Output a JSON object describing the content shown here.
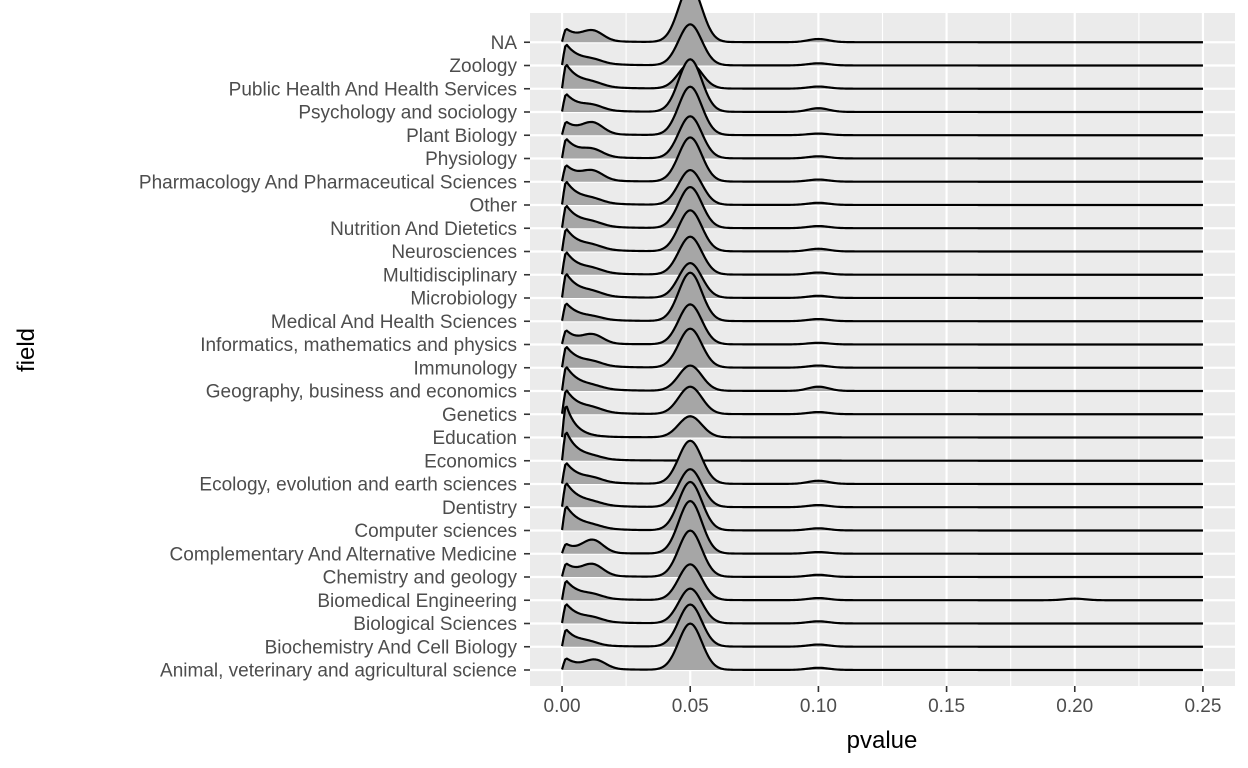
{
  "chart_data": {
    "type": "ridgeline",
    "xlabel": "pvalue",
    "ylabel": "field",
    "xlim": [
      -0.0125,
      0.2625
    ],
    "x_ticks": [
      0.0,
      0.05,
      0.1,
      0.15,
      0.2,
      0.25
    ],
    "x_tick_labels": [
      "0.00",
      "0.05",
      "0.10",
      "0.15",
      "0.20",
      "0.25"
    ],
    "grid": true,
    "colors": {
      "panel": "#ebebeb",
      "grid": "#ffffff",
      "fill": "#a6a6a6",
      "line": "#000000",
      "tick_text": "#4d4d4d",
      "tick_mark": "#333333"
    },
    "series": [
      {
        "name": "Animal, veterinary and agricultural science",
        "left_peak": 1.4,
        "left_decay": 0.006,
        "left_bump": 0.8,
        "bump_pos": 0.013,
        "peak_05": 4.4,
        "peak_10": 0.2,
        "peak_20": 0.0
      },
      {
        "name": "Biochemistry And Cell Biology",
        "left_peak": 2.2,
        "left_decay": 0.005,
        "left_bump": 0.3,
        "bump_pos": 0.01,
        "peak_05": 4.0,
        "peak_10": 0.2,
        "peak_20": 0.0
      },
      {
        "name": "Biological Sciences",
        "left_peak": 2.4,
        "left_decay": 0.006,
        "left_bump": 0.3,
        "bump_pos": 0.012,
        "peak_05": 3.3,
        "peak_10": 0.2,
        "peak_20": 0.0
      },
      {
        "name": "Biomedical Engineering",
        "left_peak": 2.4,
        "left_decay": 0.006,
        "left_bump": 0.3,
        "bump_pos": 0.012,
        "peak_05": 3.4,
        "peak_10": 0.2,
        "peak_20": 0.15
      },
      {
        "name": "Chemistry and geology",
        "left_peak": 1.6,
        "left_decay": 0.006,
        "left_bump": 1.0,
        "bump_pos": 0.012,
        "peak_05": 4.4,
        "peak_10": 0.2,
        "peak_20": 0.0
      },
      {
        "name": "Complementary And Alternative Medicine",
        "left_peak": 1.2,
        "left_decay": 0.005,
        "left_bump": 1.2,
        "bump_pos": 0.012,
        "peak_05": 5.0,
        "peak_10": 0.15,
        "peak_20": 0.0
      },
      {
        "name": "Computer sciences",
        "left_peak": 3.0,
        "left_decay": 0.006,
        "left_bump": 0.2,
        "bump_pos": 0.012,
        "peak_05": 4.6,
        "peak_10": 0.2,
        "peak_20": 0.0
      },
      {
        "name": "Dentistry",
        "left_peak": 3.0,
        "left_decay": 0.006,
        "left_bump": 0.2,
        "bump_pos": 0.012,
        "peak_05": 3.6,
        "peak_10": 0.2,
        "peak_20": 0.0
      },
      {
        "name": "Ecology, evolution and earth sciences",
        "left_peak": 2.6,
        "left_decay": 0.006,
        "left_bump": 0.3,
        "bump_pos": 0.012,
        "peak_05": 4.1,
        "peak_10": 0.3,
        "peak_20": 0.0
      },
      {
        "name": "Economics",
        "left_peak": 3.8,
        "left_decay": 0.005,
        "left_bump": 0.2,
        "bump_pos": 0.012,
        "peak_05": 0.0,
        "peak_10": 0.0,
        "peak_20": 0.0
      },
      {
        "name": "Education",
        "left_peak": 4.6,
        "left_decay": 0.004,
        "left_bump": 0.0,
        "bump_pos": 0.012,
        "peak_05": 2.0,
        "peak_10": 0.0,
        "peak_20": 0.0
      },
      {
        "name": "Genetics",
        "left_peak": 3.0,
        "left_decay": 0.006,
        "left_bump": 0.3,
        "bump_pos": 0.012,
        "peak_05": 2.6,
        "peak_10": 0.2,
        "peak_20": 0.0
      },
      {
        "name": "Geography, business and economics",
        "left_peak": 3.0,
        "left_decay": 0.006,
        "left_bump": 0.2,
        "bump_pos": 0.012,
        "peak_05": 2.4,
        "peak_10": 0.4,
        "peak_20": 0.0
      },
      {
        "name": "Immunology",
        "left_peak": 2.6,
        "left_decay": 0.006,
        "left_bump": 0.3,
        "bump_pos": 0.012,
        "peak_05": 3.7,
        "peak_10": 0.2,
        "peak_20": 0.0
      },
      {
        "name": "Informatics, mathematics and physics",
        "left_peak": 1.8,
        "left_decay": 0.005,
        "left_bump": 0.8,
        "bump_pos": 0.012,
        "peak_05": 3.8,
        "peak_10": 0.15,
        "peak_20": 0.0
      },
      {
        "name": "Medical And Health Sciences",
        "left_peak": 2.2,
        "left_decay": 0.006,
        "left_bump": 0.2,
        "bump_pos": 0.012,
        "peak_05": 4.6,
        "peak_10": 0.2,
        "peak_20": 0.0
      },
      {
        "name": "Microbiology",
        "left_peak": 3.0,
        "left_decay": 0.006,
        "left_bump": 0.3,
        "bump_pos": 0.012,
        "peak_05": 3.3,
        "peak_10": 0.2,
        "peak_20": 0.0
      },
      {
        "name": "Multidisciplinary",
        "left_peak": 2.8,
        "left_decay": 0.006,
        "left_bump": 0.3,
        "bump_pos": 0.012,
        "peak_05": 3.6,
        "peak_10": 0.2,
        "peak_20": 0.0
      },
      {
        "name": "Neurosciences",
        "left_peak": 2.8,
        "left_decay": 0.006,
        "left_bump": 0.3,
        "bump_pos": 0.012,
        "peak_05": 3.9,
        "peak_10": 0.25,
        "peak_20": 0.0
      },
      {
        "name": "Nutrition And Dietetics",
        "left_peak": 2.8,
        "left_decay": 0.006,
        "left_bump": 0.3,
        "bump_pos": 0.012,
        "peak_05": 3.9,
        "peak_10": 0.2,
        "peak_20": 0.0
      },
      {
        "name": "Other",
        "left_peak": 2.9,
        "left_decay": 0.006,
        "left_bump": 0.3,
        "bump_pos": 0.012,
        "peak_05": 3.3,
        "peak_10": 0.2,
        "peak_20": 0.0
      },
      {
        "name": "Pharmacology And Pharmaceutical Sciences",
        "left_peak": 2.0,
        "left_decay": 0.006,
        "left_bump": 0.8,
        "bump_pos": 0.012,
        "peak_05": 4.2,
        "peak_10": 0.2,
        "peak_20": 0.0
      },
      {
        "name": "Physiology",
        "left_peak": 2.4,
        "left_decay": 0.006,
        "left_bump": 0.6,
        "bump_pos": 0.012,
        "peak_05": 4.0,
        "peak_10": 0.2,
        "peak_20": 0.0
      },
      {
        "name": "Plant Biology",
        "left_peak": 1.6,
        "left_decay": 0.006,
        "left_bump": 1.0,
        "bump_pos": 0.012,
        "peak_05": 4.6,
        "peak_10": 0.15,
        "peak_20": 0.0
      },
      {
        "name": "Psychology and sociology",
        "left_peak": 2.2,
        "left_decay": 0.006,
        "left_bump": 0.4,
        "bump_pos": 0.012,
        "peak_05": 5.0,
        "peak_10": 0.35,
        "peak_20": 0.0
      },
      {
        "name": "Public Health And Health Services",
        "left_peak": 3.0,
        "left_decay": 0.006,
        "left_bump": 0.3,
        "bump_pos": 0.012,
        "peak_05": 2.4,
        "peak_10": 0.2,
        "peak_20": 0.0
      },
      {
        "name": "Zoology",
        "left_peak": 2.6,
        "left_decay": 0.006,
        "left_bump": 0.3,
        "bump_pos": 0.012,
        "peak_05": 3.9,
        "peak_10": 0.2,
        "peak_20": 0.0
      },
      {
        "name": "NA",
        "left_peak": 1.6,
        "left_decay": 0.006,
        "left_bump": 0.9,
        "bump_pos": 0.012,
        "peak_05": 5.4,
        "peak_10": 0.3,
        "peak_20": 0.0
      }
    ]
  }
}
